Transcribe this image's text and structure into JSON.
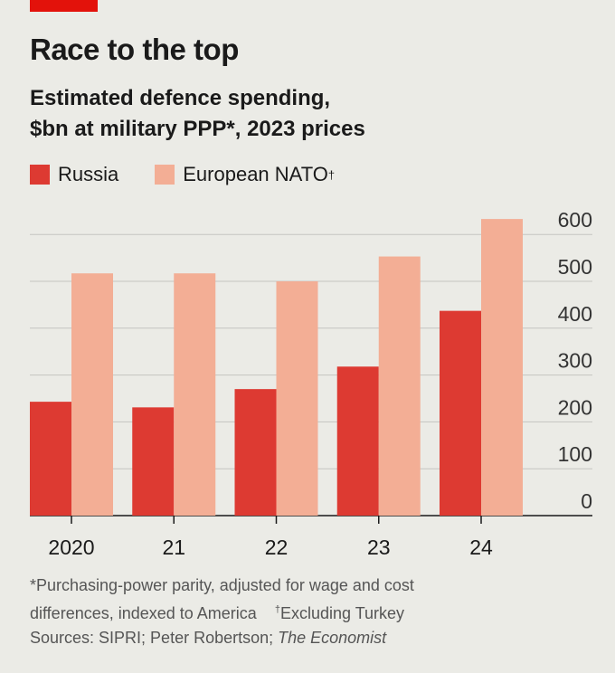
{
  "header": {
    "title": "Race to the top",
    "subtitle_line1": "Estimated defence spending,",
    "subtitle_line2": "$bn at military PPP*, 2023 prices"
  },
  "legend": {
    "russia_label": "Russia",
    "nato_label": "European NATO",
    "nato_mark": "†"
  },
  "colors": {
    "russia": "#dd3a32",
    "nato": "#f3ae95",
    "accent": "#e3120b"
  },
  "chart_data": {
    "type": "bar",
    "categories": [
      "2020",
      "21",
      "22",
      "23",
      "24"
    ],
    "series": [
      {
        "name": "Russia",
        "values": [
          243,
          231,
          270,
          318,
          437
        ]
      },
      {
        "name": "European NATO",
        "values": [
          517,
          517,
          500,
          553,
          633
        ]
      }
    ],
    "ylim": [
      0,
      600
    ],
    "yticks": [
      0,
      100,
      200,
      300,
      400,
      500,
      600
    ],
    "y_axis_side": "right",
    "grid": true,
    "legend_position": "top-left"
  },
  "footnotes": {
    "line1": "*Purchasing-power parity, adjusted for wage and cost",
    "line2_a": "differences, indexed to America",
    "line2_mark": "†",
    "line2_b": "Excluding Turkey",
    "line3_a": "Sources: SIPRI; Peter Robertson; ",
    "line3_b": "The Economist"
  }
}
